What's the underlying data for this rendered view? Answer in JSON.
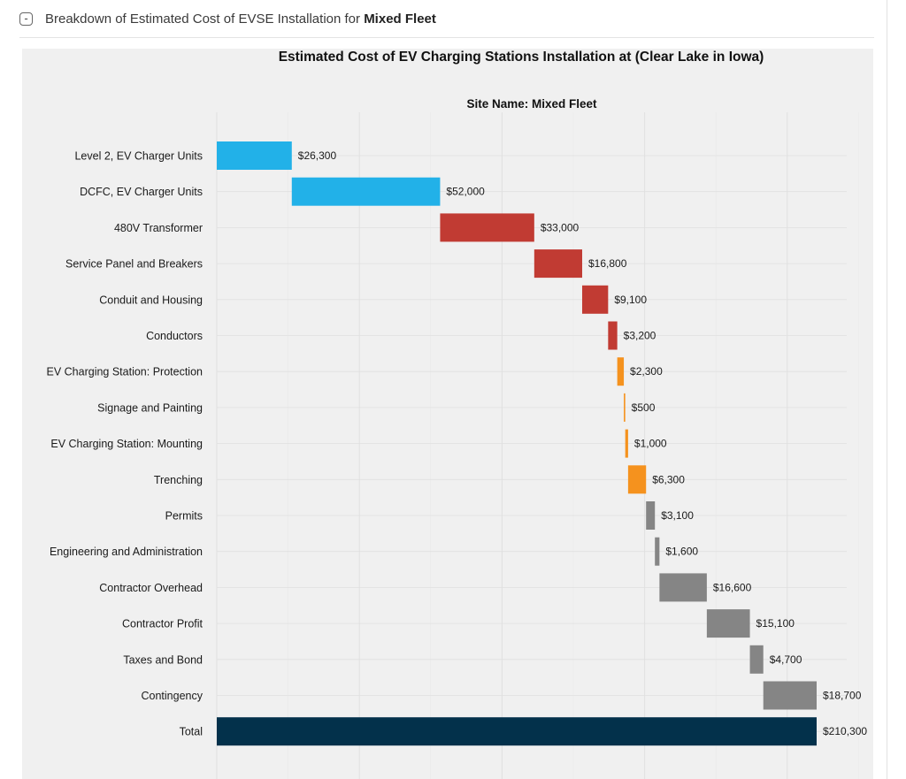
{
  "panel": {
    "toggle_symbol": "-",
    "title_prefix": "Breakdown of Estimated Cost of EVSE Installation for ",
    "title_bold": "Mixed Fleet"
  },
  "chart_data": {
    "type": "waterfall",
    "title": "Estimated Cost of EV Charging Stations Installation at (Clear Lake in Iowa)",
    "subtitle": "Site Name: Mixed Fleet",
    "xlim": [
      0,
      210300
    ],
    "grid": true,
    "colors": {
      "evse_units": "#22b1e8",
      "electrical": "#c13b33",
      "installation": "#f5921e",
      "soft_costs": "#858585",
      "total": "#03314b",
      "background": "#f0f0f0",
      "gridline": "#e0e0e0"
    },
    "items": [
      {
        "label": "Level 2, EV Charger Units",
        "value": 26300,
        "value_label": "$26,300",
        "group": "evse_units"
      },
      {
        "label": "DCFC, EV Charger Units",
        "value": 52000,
        "value_label": "$52,000",
        "group": "evse_units"
      },
      {
        "label": "480V Transformer",
        "value": 33000,
        "value_label": "$33,000",
        "group": "electrical"
      },
      {
        "label": "Service Panel and Breakers",
        "value": 16800,
        "value_label": "$16,800",
        "group": "electrical"
      },
      {
        "label": "Conduit and Housing",
        "value": 9100,
        "value_label": "$9,100",
        "group": "electrical"
      },
      {
        "label": "Conductors",
        "value": 3200,
        "value_label": "$3,200",
        "group": "electrical"
      },
      {
        "label": "EV Charging Station: Protection",
        "value": 2300,
        "value_label": "$2,300",
        "group": "installation"
      },
      {
        "label": "Signage and Painting",
        "value": 500,
        "value_label": "$500",
        "group": "installation"
      },
      {
        "label": "EV Charging Station: Mounting",
        "value": 1000,
        "value_label": "$1,000",
        "group": "installation"
      },
      {
        "label": "Trenching",
        "value": 6300,
        "value_label": "$6,300",
        "group": "installation"
      },
      {
        "label": "Permits",
        "value": 3100,
        "value_label": "$3,100",
        "group": "soft_costs"
      },
      {
        "label": "Engineering and Administration",
        "value": 1600,
        "value_label": "$1,600",
        "group": "soft_costs"
      },
      {
        "label": "Contractor Overhead",
        "value": 16600,
        "value_label": "$16,600",
        "group": "soft_costs"
      },
      {
        "label": "Contractor Profit",
        "value": 15100,
        "value_label": "$15,100",
        "group": "soft_costs"
      },
      {
        "label": "Taxes and Bond",
        "value": 4700,
        "value_label": "$4,700",
        "group": "soft_costs"
      },
      {
        "label": "Contingency",
        "value": 18700,
        "value_label": "$18,700",
        "group": "soft_costs"
      },
      {
        "label": "Total",
        "value": 210300,
        "value_label": "$210,300",
        "group": "total",
        "is_total": true
      }
    ]
  }
}
